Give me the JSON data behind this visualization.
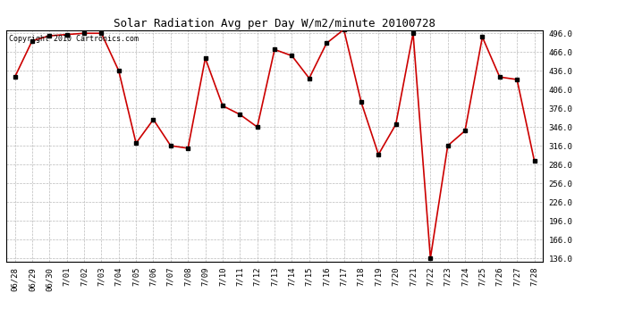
{
  "title": "Solar Radiation Avg per Day W/m2/minute 20100728",
  "copyright_text": "Copyright 2010 Cartronics.com",
  "dates": [
    "06/28",
    "06/29",
    "06/30",
    "7/01",
    "7/02",
    "7/03",
    "7/04",
    "7/05",
    "7/06",
    "7/07",
    "7/08",
    "7/09",
    "7/10",
    "7/11",
    "7/12",
    "7/13",
    "7/14",
    "7/15",
    "7/16",
    "7/17",
    "7/18",
    "7/19",
    "7/20",
    "7/21",
    "7/22",
    "7/23",
    "7/24",
    "7/25",
    "7/26",
    "7/27",
    "7/28"
  ],
  "values": [
    426,
    484,
    492,
    494,
    496,
    496,
    436,
    320,
    358,
    316,
    312,
    456,
    380,
    366,
    346,
    470,
    460,
    424,
    480,
    502,
    386,
    302,
    350,
    496,
    136,
    316,
    340,
    490,
    426,
    422,
    292
  ],
  "line_color": "#cc0000",
  "marker_color": "#000000",
  "bg_color": "#ffffff",
  "grid_color": "#bbbbbb",
  "ylim_min": 136.0,
  "ylim_max": 496.0,
  "yticks": [
    136.0,
    166.0,
    196.0,
    226.0,
    256.0,
    286.0,
    316.0,
    346.0,
    376.0,
    406.0,
    436.0,
    466.0,
    496.0
  ],
  "title_fontsize": 9,
  "copyright_fontsize": 6,
  "tick_fontsize": 6.5
}
